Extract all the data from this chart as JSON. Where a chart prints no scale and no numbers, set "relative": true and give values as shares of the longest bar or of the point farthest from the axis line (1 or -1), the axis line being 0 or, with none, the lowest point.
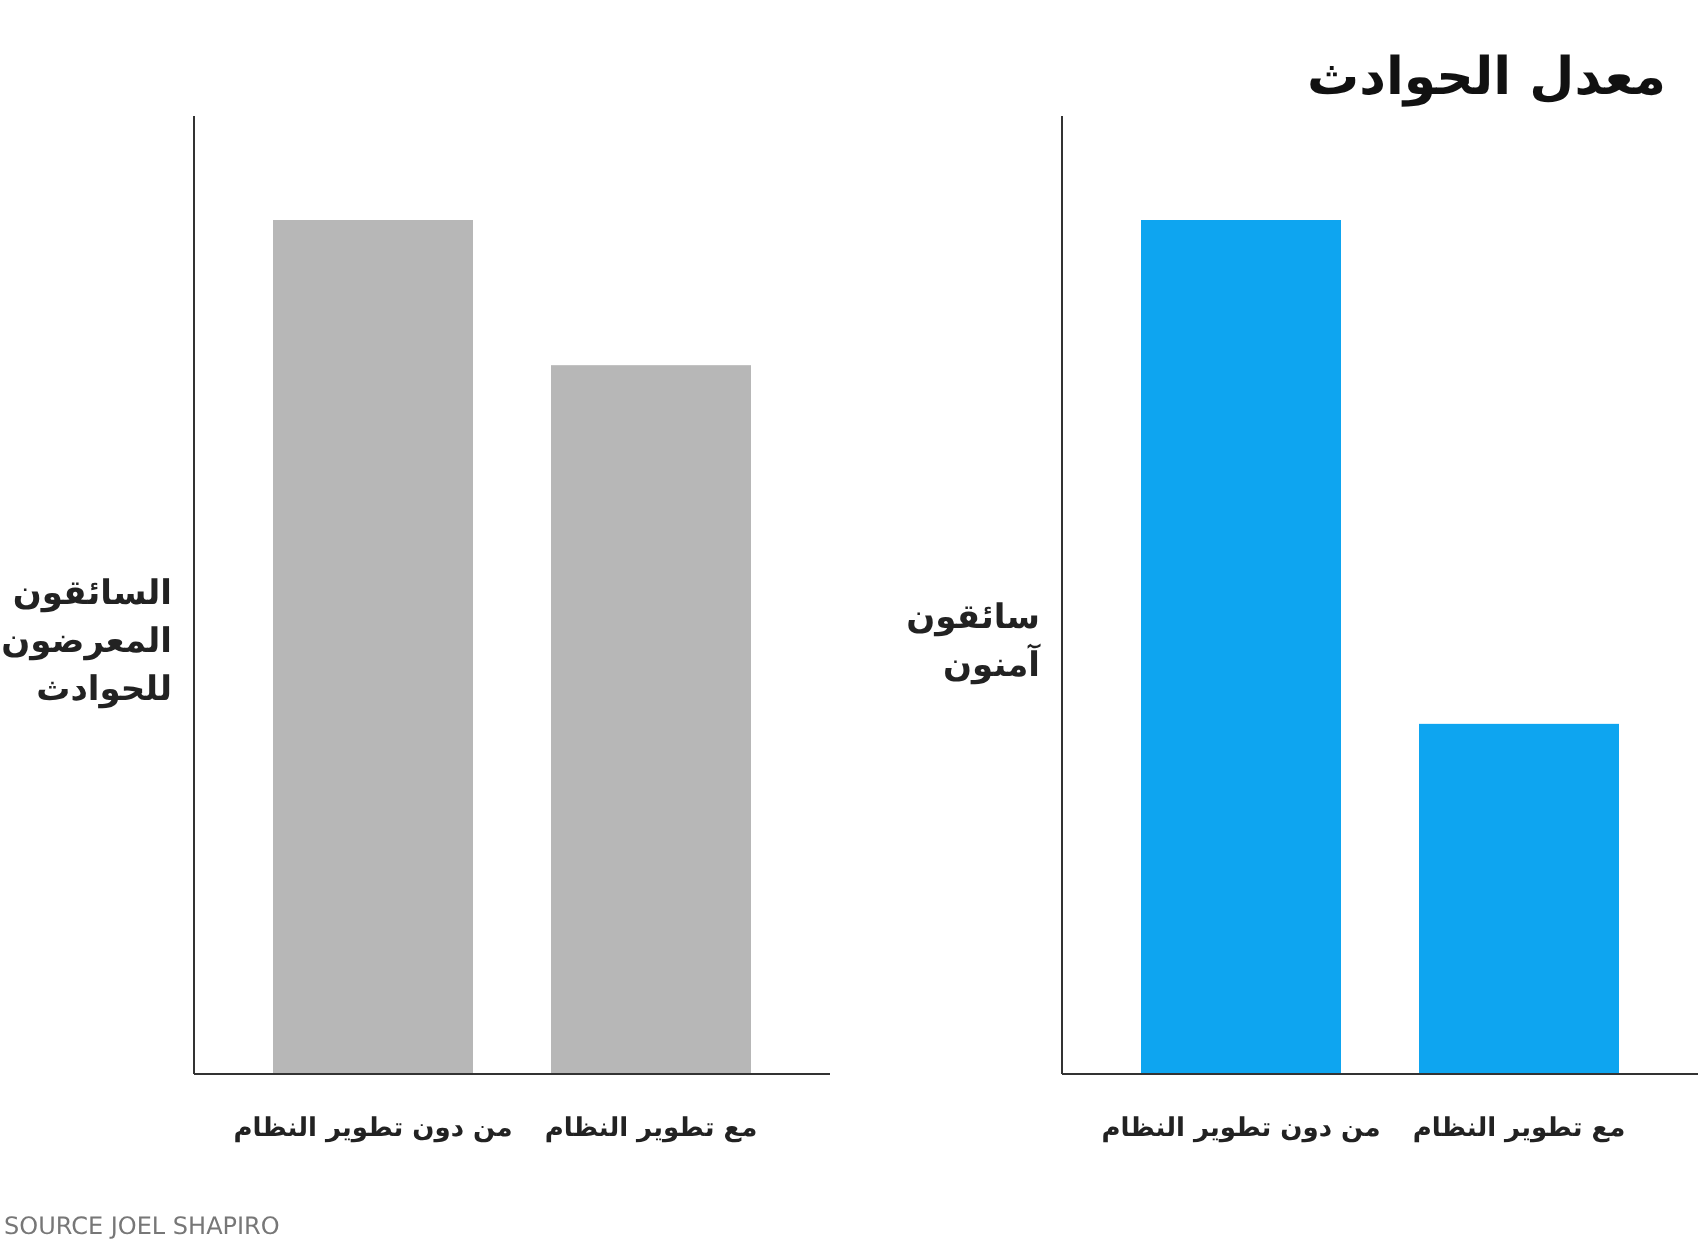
{
  "chart_data": [
    {
      "type": "bar",
      "relative": true,
      "ylabel": "السائقون المعرضون للحوادث",
      "categories": [
        "من دون تطوير النظام",
        "مع تطوير النظام"
      ],
      "values": [
        1,
        0.83
      ],
      "color": "#b7b7b7",
      "annotations": [
        "SOURCE JOEL SHAPIRO"
      ]
    },
    {
      "type": "bar",
      "relative": true,
      "title": "معدل الحوادث",
      "ylabel": "سائقون آمنون",
      "categories": [
        "من دون تطوير النظام",
        "مع تطوير النظام"
      ],
      "values": [
        1,
        0.41
      ],
      "color": "#0ea5f0"
    }
  ]
}
